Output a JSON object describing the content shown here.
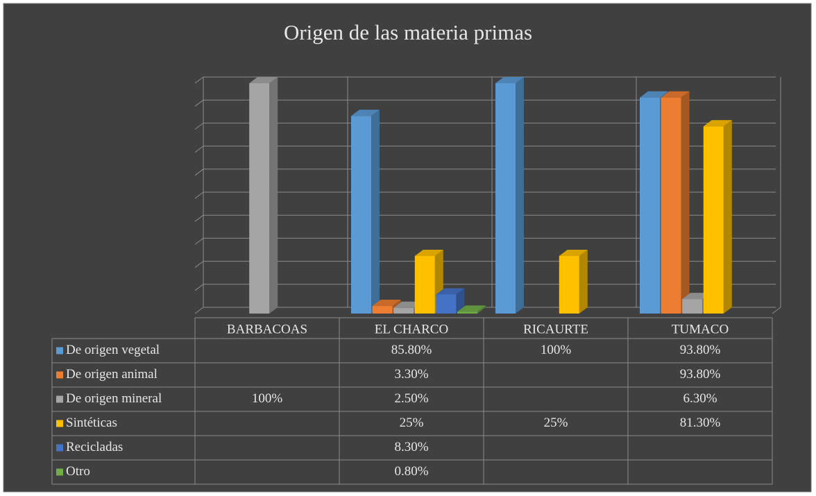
{
  "chart_data": {
    "type": "bar3d",
    "title": "Origen de las materia primas",
    "categories": [
      "BARBACOAS",
      "EL CHARCO",
      "RICAURTE",
      "TUMACO"
    ],
    "series": [
      {
        "name": "De origen vegetal",
        "color": "#5b9bd5",
        "values": [
          null,
          85.8,
          100,
          93.8
        ],
        "value_labels": [
          null,
          "85.80%",
          "100%",
          "93.80%"
        ]
      },
      {
        "name": "De origen animal",
        "color": "#ed7d31",
        "values": [
          null,
          3.3,
          null,
          93.8
        ],
        "value_labels": [
          null,
          "3.30%",
          null,
          "93.80%"
        ]
      },
      {
        "name": "De origen mineral",
        "color": "#a5a5a5",
        "values": [
          100,
          2.5,
          null,
          6.3
        ],
        "value_labels": [
          "100%",
          "2.50%",
          null,
          "6.30%"
        ]
      },
      {
        "name": "Sintéticas",
        "color": "#ffc000",
        "values": [
          null,
          25,
          25,
          81.3
        ],
        "value_labels": [
          null,
          "25%",
          "25%",
          "81.30%"
        ]
      },
      {
        "name": "Recicladas",
        "color": "#4472c4",
        "values": [
          null,
          8.3,
          null,
          null
        ],
        "value_labels": [
          null,
          "8.30%",
          null,
          null
        ]
      },
      {
        "name": "Otro",
        "color": "#70ad47",
        "values": [
          null,
          0.8,
          null,
          null
        ],
        "value_labels": [
          null,
          "0.80%",
          null,
          null
        ]
      }
    ],
    "ylim": [
      0,
      100
    ],
    "yticks": [
      0,
      10,
      20,
      30,
      40,
      50,
      60,
      70,
      80,
      90,
      100
    ],
    "grid": true
  }
}
